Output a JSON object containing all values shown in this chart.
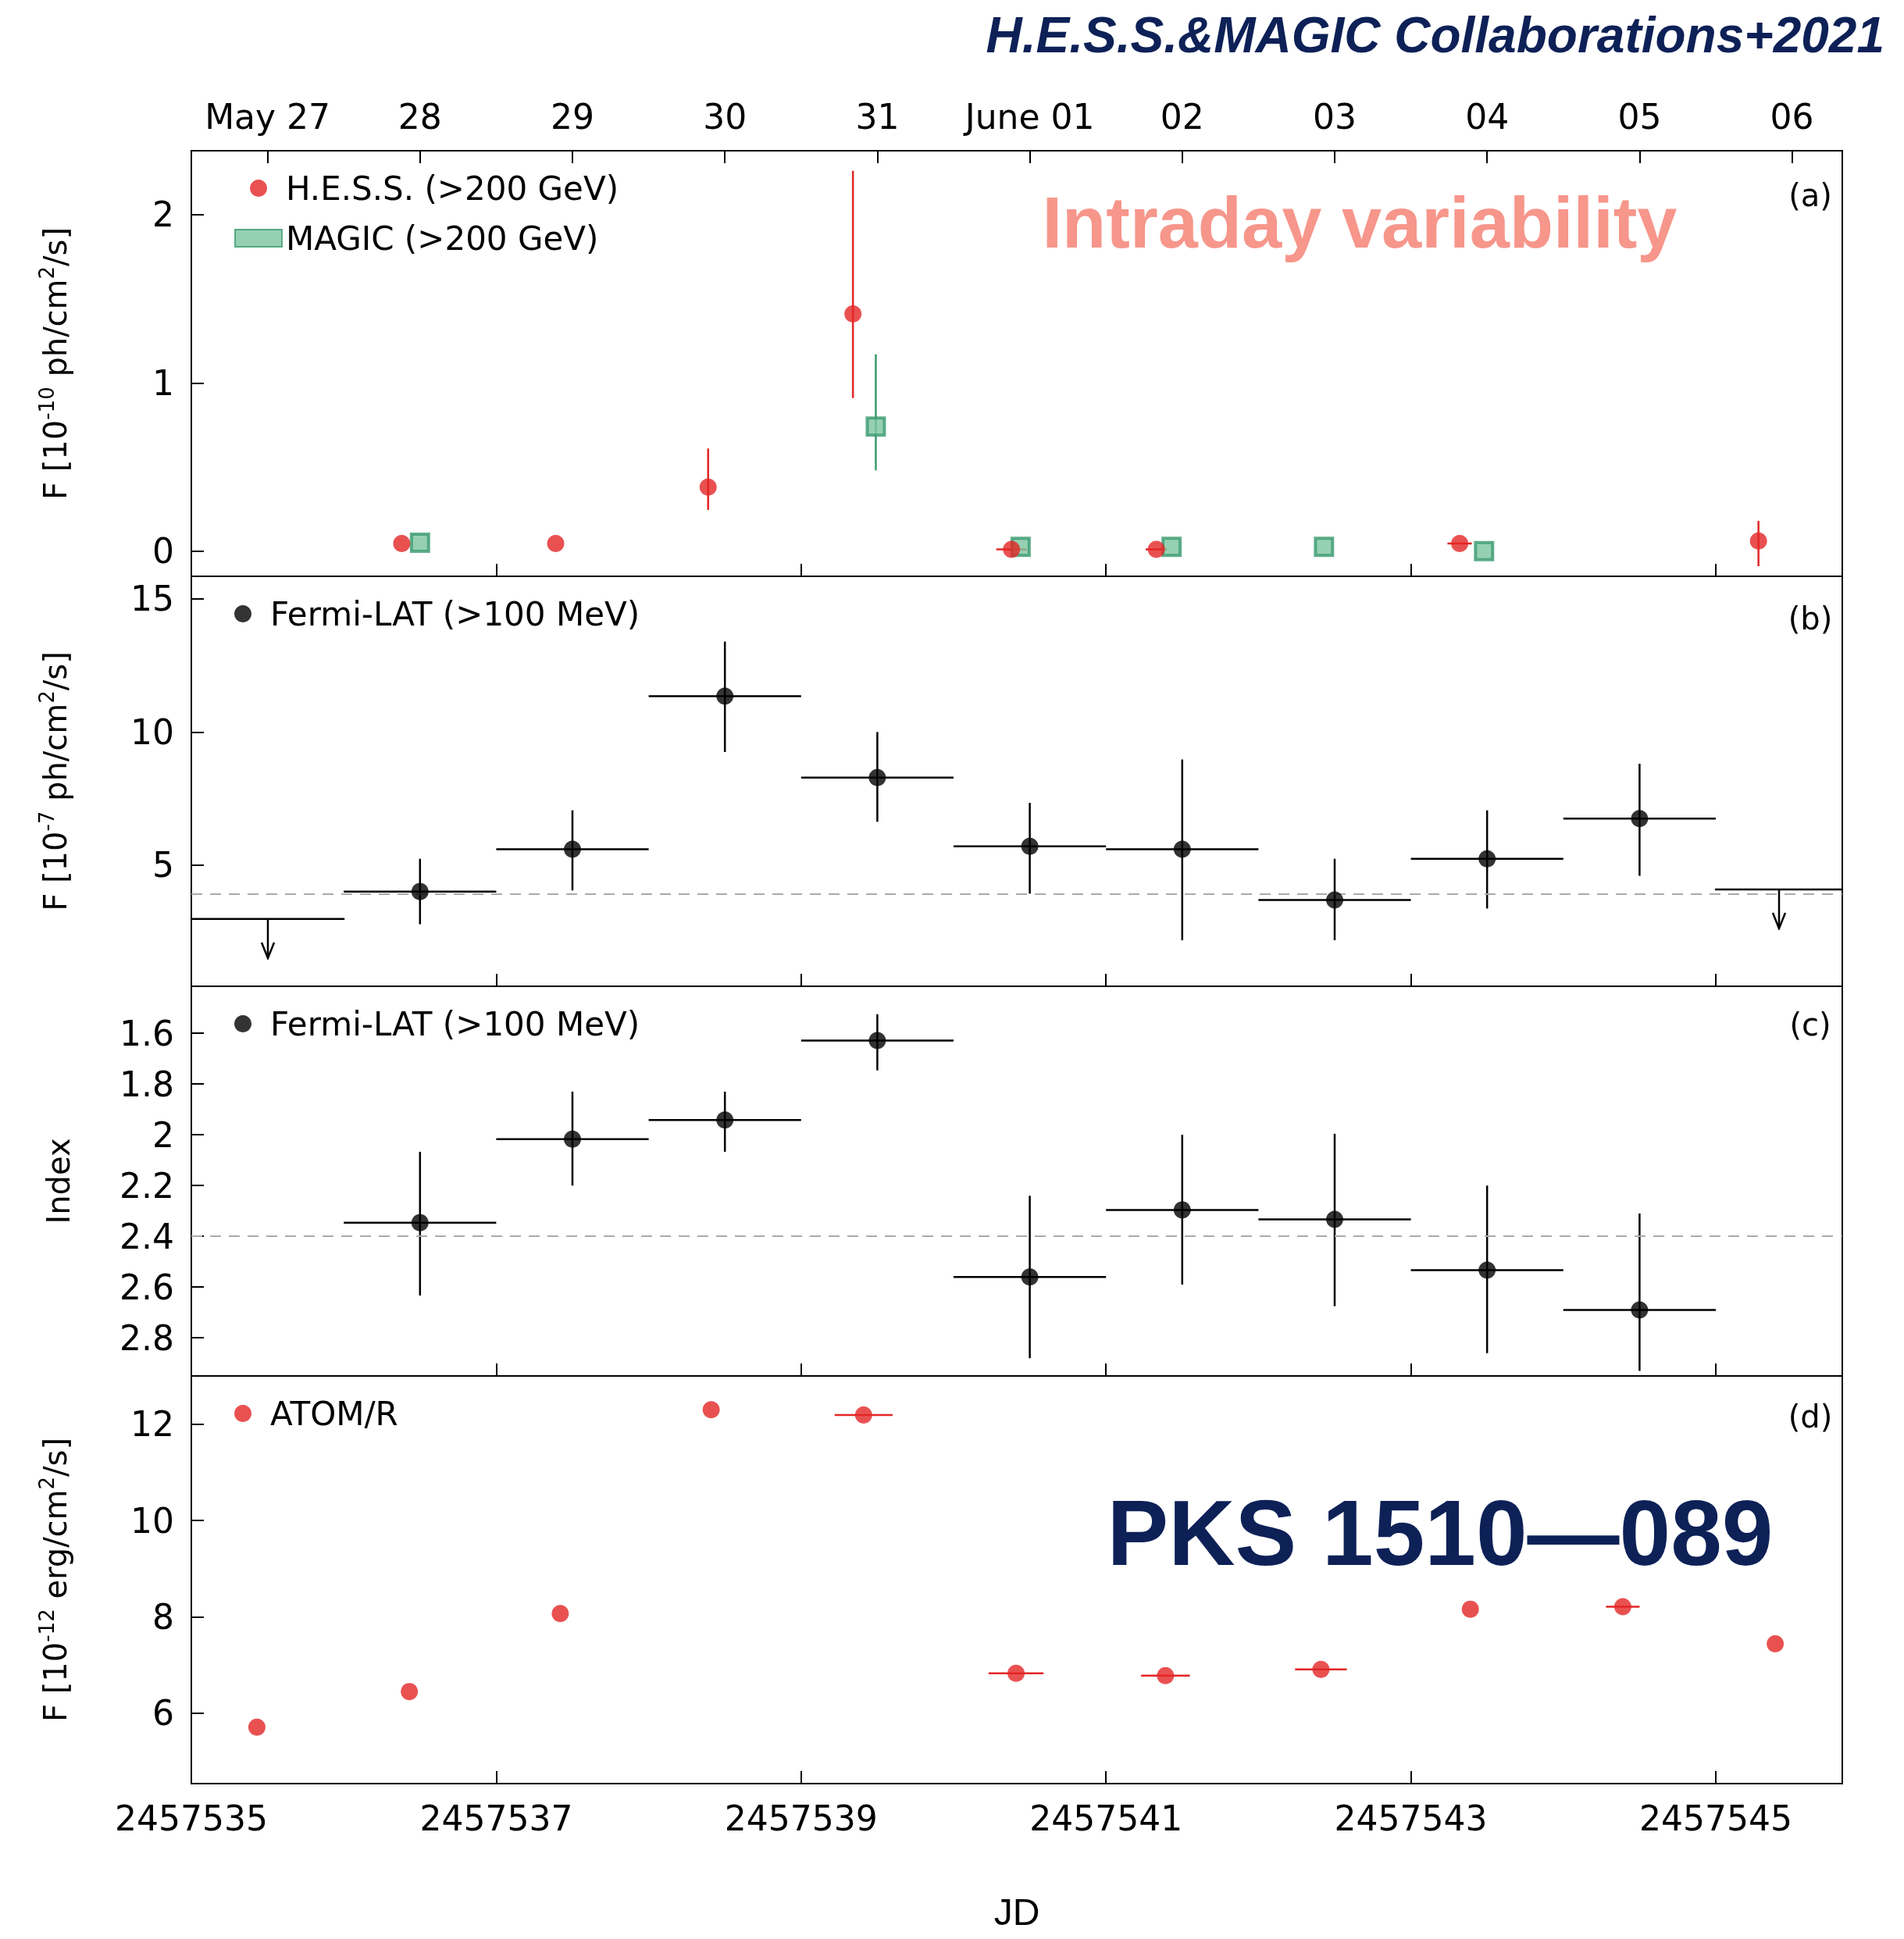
{
  "chart_data": [
    {
      "type": "scatter",
      "title": "H.E.S.S.&MAGIC Collaborations+2021",
      "ylabel": "F [10$^{-10}$ ph/cm$^{2}$/s]",
      "annotations": [
        "Intraday variability",
        "(a)"
      ],
      "xlim": [
        2457535,
        2457545.83
      ],
      "xticks": [
        2457535,
        2457537,
        2457539,
        2457541,
        2457543,
        2457545
      ],
      "x2lim": [
        "--05-26T12:00",
        "--06-06T07:55"
      ],
      "x2ticks": [
        {
          "value": "--05-27",
          "label": "May 27"
        },
        {
          "value": "--05-28",
          "label": "28"
        },
        {
          "value": "--05-29",
          "label": "29"
        },
        {
          "value": "--05-30",
          "label": "30"
        },
        {
          "value": "--05-31",
          "label": "31"
        },
        {
          "value": "--06-01",
          "label": "June 01"
        },
        {
          "value": "--06-02",
          "label": "02"
        },
        {
          "value": "--06-03",
          "label": "03"
        },
        {
          "value": "--06-04",
          "label": "04"
        },
        {
          "value": "--06-05",
          "label": "05"
        },
        {
          "value": "--06-06",
          "label": "06"
        }
      ],
      "ylim": [
        -0.15,
        2.38
      ],
      "yticks": [
        0,
        1,
        2
      ],
      "tick_labels": "y",
      "legend": "top left",
      "series": [
        {
          "name": "H.E.S.S. (>200 GeV)",
          "color": "#e32626",
          "marker": "circle",
          "x": [
            2457536.38,
            2457537.39,
            2457538.39,
            2457539.34,
            2457540.38,
            2457541.33,
            2457543.32,
            2457545.28
          ],
          "values": [
            0.045,
            0.045,
            0.38,
            1.41,
            0.01,
            0.01,
            0.045,
            0.06
          ],
          "errors": [
            null,
            null,
            [
              0.245,
              0.61
            ],
            [
              0.91,
              2.26
            ],
            null,
            null,
            null,
            [
              -0.09,
              0.18
            ]
          ],
          "xerrors": [
            null,
            null,
            null,
            null,
            0.1,
            0.07,
            0.08,
            null
          ]
        },
        {
          "name": "MAGIC (>200 GeV)",
          "color": "#3a9a6e",
          "marker": "square",
          "x": [
            2457536.5,
            2457539.49,
            2457540.44,
            2457541.43,
            2457542.43,
            2457543.48
          ],
          "values": [
            0.05,
            0.74,
            0.025,
            0.025,
            0.025,
            0.0
          ],
          "errors": [
            null,
            [
              0.48,
              1.17
            ],
            null,
            null,
            null,
            null
          ]
        }
      ]
    },
    {
      "type": "scatter",
      "ylabel": "F [10$^{-7}$ ph/cm$^{2}$/s]",
      "annotations": [
        "(b)"
      ],
      "xlim": [
        2457535,
        2457545.83
      ],
      "xticks": [
        2457535,
        2457537,
        2457539,
        2457541,
        2457543,
        2457545
      ],
      "ylim": [
        0.45,
        15.85
      ],
      "yticks": [
        5,
        10,
        15
      ],
      "tick_labels": "y",
      "legend": "top left",
      "ref_lines": [
        {
          "axis": "y",
          "value": 3.93,
          "color": "#aaaaaa",
          "line_style": "dashed"
        }
      ],
      "series": [
        {
          "name": "Fermi-LAT (>100 MeV)",
          "color": "#000000",
          "marker": "circle",
          "x": [
            2457536.5,
            2457537.5,
            2457538.5,
            2457539.5,
            2457540.5,
            2457541.5,
            2457542.5,
            2457543.5,
            2457544.5
          ],
          "values": [
            4.01,
            5.6,
            11.35,
            8.29,
            5.71,
            5.6,
            3.69,
            5.24,
            6.75
          ],
          "errors": [
            [
              2.78,
              5.24
            ],
            [
              4.05,
              7.06
            ],
            [
              9.25,
              13.4
            ],
            [
              6.63,
              10.0
            ],
            [
              3.93,
              7.34
            ],
            [
              2.18,
              8.97
            ],
            [
              2.18,
              5.24
            ],
            [
              3.37,
              7.06
            ],
            [
              4.6,
              8.81
            ]
          ],
          "xerrors": [
            0.5,
            0.5,
            0.5,
            0.5,
            0.5,
            0.5,
            0.5,
            0.5,
            0.5
          ]
        },
        {
          "type": "line",
          "color": "#000000",
          "marker": "none",
          "x": [
            2457535,
            2457536
          ],
          "values": [
            2.98,
            2.98
          ]
        },
        {
          "type": "line",
          "color": "#000000",
          "marker": "none",
          "x": [
            2457545,
            2457545.83
          ],
          "values": [
            4.09,
            4.09
          ]
        }
      ]
    },
    {
      "type": "scatter",
      "ylabel": "Index",
      "annotations": [
        "(c)"
      ],
      "xlim": [
        2457535,
        2457545.83
      ],
      "xticks": [
        2457535,
        2457537,
        2457539,
        2457541,
        2457543,
        2457545
      ],
      "ylim": [
        2.95,
        1.415
      ],
      "yticks": [
        1.6,
        1.8,
        2,
        2.2,
        2.4,
        2.6,
        2.8
      ],
      "tick_labels": "y",
      "legend": "top left",
      "ref_lines": [
        {
          "axis": "y",
          "value": 2.4,
          "color": "#aaaaaa",
          "line_style": "dashed"
        }
      ],
      "series": [
        {
          "name": "Fermi-LAT (>100 MeV)",
          "color": "#000000",
          "marker": "circle",
          "x": [
            2457536.5,
            2457537.5,
            2457538.5,
            2457539.5,
            2457540.5,
            2457541.5,
            2457542.5,
            2457543.5,
            2457544.5
          ],
          "values": [
            2.346,
            2.017,
            1.942,
            1.629,
            2.56,
            2.296,
            2.333,
            2.533,
            2.69
          ],
          "errors": [
            [
              2.067,
              2.633
            ],
            [
              1.83,
              2.2
            ],
            [
              1.83,
              2.067
            ],
            [
              1.525,
              1.746
            ],
            [
              2.24,
              2.88
            ],
            [
              2.0,
              2.59
            ],
            [
              1.996,
              2.675
            ],
            [
              2.2,
              2.86
            ],
            [
              2.31,
              2.93
            ]
          ],
          "xerrors": [
            0.5,
            0.5,
            0.5,
            0.5,
            0.5,
            0.5,
            0.5,
            0.5,
            0.5
          ]
        }
      ]
    },
    {
      "type": "scatter",
      "xlabel": "JD",
      "ylabel": "F [10$^{-12}$ erg/cm$^{2}$/s]",
      "annotations": [
        "(d)",
        "PKS 1510—089"
      ],
      "xlim": [
        2457535,
        2457545.83
      ],
      "xticks": [
        2457535,
        2457537,
        2457539,
        2457541,
        2457543,
        2457545
      ],
      "ylim": [
        4.54,
        13.0
      ],
      "yticks": [
        6,
        8,
        10,
        12
      ],
      "legend": "top left",
      "series": [
        {
          "name": "ATOM/R",
          "color": "#e32626",
          "marker": "circle",
          "x": [
            2457535.43,
            2457536.43,
            2457537.42,
            2457538.41,
            2457539.41,
            2457540.41,
            2457541.39,
            2457542.41,
            2457543.39,
            2457544.39,
            2457545.39
          ],
          "values": [
            5.71,
            6.45,
            8.07,
            12.3,
            12.19,
            6.83,
            6.78,
            6.91,
            8.16,
            8.21,
            7.44
          ],
          "xerrors": [
            null,
            null,
            null,
            null,
            0.19,
            0.18,
            0.16,
            0.17,
            null,
            0.11,
            null
          ]
        }
      ]
    }
  ]
}
